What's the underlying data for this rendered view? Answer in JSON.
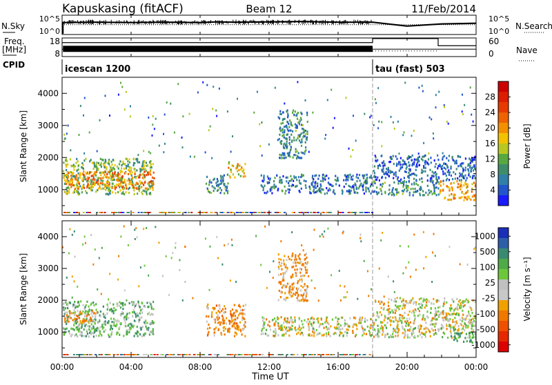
{
  "header": {
    "station": "Kapuskasing (fitACF)",
    "beam": "Beam 12",
    "date": "11/Feb/2014"
  },
  "param_panels": {
    "nsky_label": "N.Sky",
    "nsearch_label": "N.Search",
    "noise_ticks": [
      "10^5",
      "10^0"
    ],
    "freq_label": "Freq.",
    "freq_unit": "[MHz]",
    "freq_ticks": [
      "18",
      "8"
    ],
    "nave_label": "Nave",
    "nave_ticks": [
      "60",
      "0"
    ],
    "cpid_label": "CPID",
    "cpid_modes": [
      {
        "name": "icescan 1200",
        "start": 0,
        "end": 18
      },
      {
        "name": "tau (fast) 503",
        "start": 18,
        "end": 24
      }
    ]
  },
  "axes": {
    "x_label": "Time UT",
    "x_ticks": [
      "00:00",
      "04:00",
      "08:00",
      "12:00",
      "16:00",
      "20:00",
      "00:00"
    ],
    "y_label": "Slant Range [km]",
    "y_ticks": [
      "1000",
      "2000",
      "3000",
      "4000"
    ]
  },
  "colorbars": {
    "power": {
      "label": "Power [dB]",
      "ticks": [
        "4",
        "8",
        "12",
        "16",
        "20",
        "24",
        "28"
      ],
      "colors": [
        "#1a1aff",
        "#2255cc",
        "#2f7fa8",
        "#3f8c6a",
        "#58a840",
        "#b8c820",
        "#f2c200",
        "#f39000",
        "#ee6200",
        "#e63a00",
        "#dd1c00",
        "#cc0000"
      ]
    },
    "velocity": {
      "label": "Velocity [m s⁻¹]",
      "ticks": [
        "1000",
        "500",
        "100",
        "25",
        "-25",
        "-100",
        "-500",
        "-1000"
      ],
      "colors": [
        "#1a2fb8",
        "#2d5fa8",
        "#3a8a72",
        "#4faa48",
        "#6cc83a",
        "#c0c0c0",
        "#c8c8c8",
        "#f0a000",
        "#f07800",
        "#ee5000",
        "#e62800",
        "#dd0000"
      ]
    }
  },
  "chart_data": [
    {
      "type": "line",
      "title": "N.Sky / N.Search",
      "x_range_hours": [
        0,
        24
      ],
      "series": [
        {
          "name": "N.Sky",
          "x": [
            0,
            2,
            4,
            6,
            8,
            9,
            10,
            12,
            14,
            16,
            18,
            20,
            22,
            24
          ],
          "y": [
            3.4,
            3.5,
            3.4,
            3.5,
            3.4,
            3.6,
            3.5,
            3.6,
            3.7,
            3.5,
            3.5,
            2.4,
            3.0,
            3.2
          ]
        },
        {
          "name": "N.Search",
          "x": [
            0,
            18,
            24
          ],
          "y": [
            2.8,
            2.8,
            2.8
          ]
        }
      ]
    },
    {
      "type": "line",
      "title": "Freq. / Nave",
      "x_range_hours": [
        0,
        24
      ],
      "series": [
        {
          "name": "Freq.",
          "x": [
            0,
            18,
            18,
            24
          ],
          "y": [
            12,
            12,
            12,
            12
          ]
        },
        {
          "name": "Nave",
          "x": [
            0,
            18,
            18,
            21.8,
            21.8,
            24
          ],
          "y": [
            45,
            45,
            58,
            58,
            35,
            35
          ]
        }
      ]
    },
    {
      "type": "heatmap",
      "title": "Power [dB]",
      "x_range_hours": [
        0,
        24
      ],
      "y_range_km": [
        200,
        4500
      ],
      "regions": [
        {
          "t0": 0.0,
          "t1": 5.3,
          "r0": 880,
          "r1": 2000,
          "power_db": 12
        },
        {
          "t0": 0.0,
          "t1": 5.3,
          "r0": 1050,
          "r1": 1600,
          "power_db": 20
        },
        {
          "t0": 8.3,
          "t1": 9.6,
          "r0": 900,
          "r1": 1500,
          "power_db": 8
        },
        {
          "t0": 9.6,
          "t1": 10.6,
          "r0": 1400,
          "r1": 1900,
          "power_db": 16
        },
        {
          "t0": 11.5,
          "t1": 18.0,
          "r0": 900,
          "r1": 1500,
          "power_db": 6
        },
        {
          "t0": 12.5,
          "t1": 14.2,
          "r0": 2000,
          "r1": 3500,
          "power_db": 8
        },
        {
          "t0": 18.0,
          "t1": 24.0,
          "r0": 1300,
          "r1": 2100,
          "power_db": 5
        },
        {
          "t0": 18.0,
          "t1": 21.8,
          "r0": 850,
          "r1": 1300,
          "power_db": 8
        },
        {
          "t0": 21.8,
          "t1": 24.0,
          "r0": 700,
          "r1": 1300,
          "power_db": 18
        }
      ]
    },
    {
      "type": "heatmap",
      "title": "Velocity [m s-1]",
      "x_range_hours": [
        0,
        24
      ],
      "y_range_km": [
        200,
        4500
      ],
      "regions": [
        {
          "t0": 0.0,
          "t1": 5.3,
          "r0": 880,
          "r1": 2000,
          "velocity": 60
        },
        {
          "t0": 0.0,
          "t1": 2.0,
          "r0": 1300,
          "r1": 1700,
          "velocity": -80
        },
        {
          "t0": 8.3,
          "t1": 10.6,
          "r0": 900,
          "r1": 1900,
          "velocity": -80
        },
        {
          "t0": 11.5,
          "t1": 18.0,
          "r0": 900,
          "r1": 1500,
          "velocity": 0
        },
        {
          "t0": 12.5,
          "t1": 14.2,
          "r0": 2000,
          "r1": 3500,
          "velocity": -60
        },
        {
          "t0": 18.0,
          "t1": 24.0,
          "r0": 850,
          "r1": 2100,
          "velocity": 0
        },
        {
          "t0": 22.5,
          "t1": 24.0,
          "r0": 700,
          "r1": 1000,
          "velocity": 120
        }
      ]
    }
  ]
}
